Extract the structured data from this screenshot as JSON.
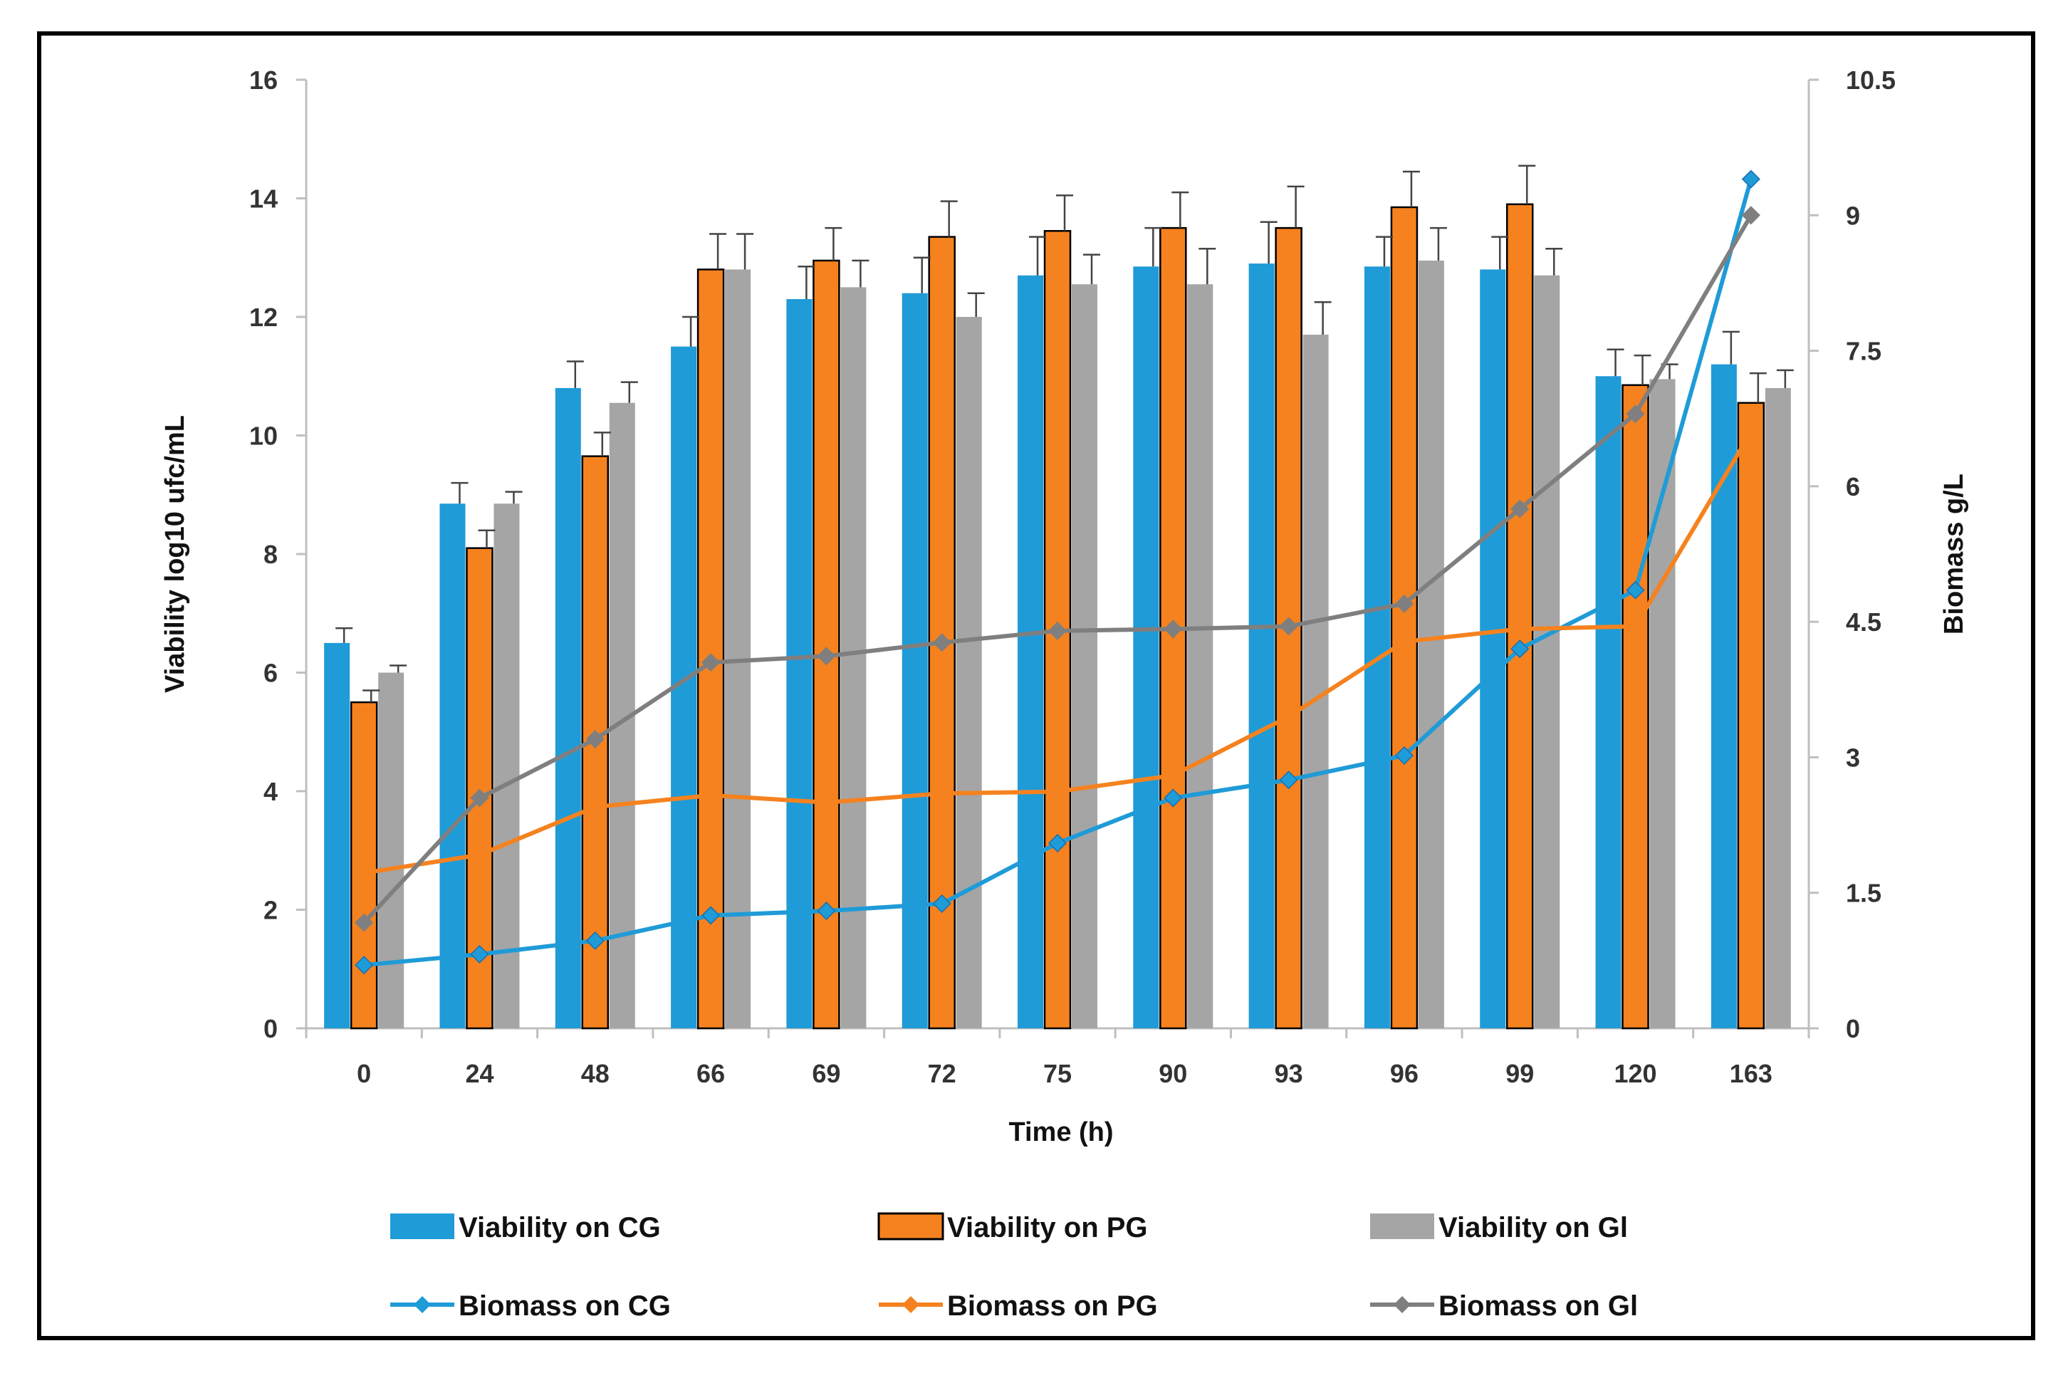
{
  "chart_data": {
    "type": "bar+line",
    "title": "",
    "xlabel": "Time (h)",
    "ylabel_left": "Viability log10 ufc/mL",
    "ylabel_right": "Biomass g/L",
    "ylim_left": [
      0,
      16
    ],
    "ylim_right": [
      0,
      10.5
    ],
    "yticks_left": [
      "0",
      "2",
      "4",
      "6",
      "8",
      "10",
      "12",
      "14",
      "16"
    ],
    "yticks_right": [
      "0",
      "1.5",
      "3",
      "4.5",
      "6",
      "7.5",
      "9",
      "10.5"
    ],
    "categories": [
      "0",
      "24",
      "48",
      "66",
      "69",
      "72",
      "75",
      "90",
      "93",
      "96",
      "99",
      "120",
      "163"
    ],
    "bar_series": [
      {
        "name": "Viability on CG",
        "color": "#1f9bd7",
        "values": [
          6.5,
          8.85,
          10.8,
          11.5,
          12.3,
          12.4,
          12.7,
          12.85,
          12.9,
          12.85,
          12.8,
          11.0,
          11.2
        ],
        "errors": [
          0.25,
          0.35,
          0.45,
          0.5,
          0.55,
          0.6,
          0.65,
          0.65,
          0.7,
          0.5,
          0.55,
          0.45,
          0.55
        ]
      },
      {
        "name": "Viability on PG",
        "color": "#f5821f",
        "values": [
          5.5,
          8.1,
          9.65,
          12.8,
          12.95,
          13.35,
          13.45,
          13.5,
          13.5,
          13.85,
          13.9,
          10.85,
          10.55
        ],
        "errors": [
          0.2,
          0.3,
          0.4,
          0.6,
          0.55,
          0.6,
          0.6,
          0.6,
          0.7,
          0.6,
          0.65,
          0.5,
          0.5
        ]
      },
      {
        "name": "Viability on Gl",
        "color": "#a5a5a5",
        "values": [
          6.0,
          8.85,
          10.55,
          12.8,
          12.5,
          12.0,
          12.55,
          12.55,
          11.7,
          12.95,
          12.7,
          10.95,
          10.8
        ],
        "errors": [
          0.12,
          0.2,
          0.35,
          0.6,
          0.45,
          0.4,
          0.5,
          0.6,
          0.55,
          0.55,
          0.45,
          0.25,
          0.3
        ]
      }
    ],
    "line_series": [
      {
        "name": "Biomass on CG",
        "color": "#1f9bd7",
        "values": [
          0.7,
          0.82,
          0.97,
          1.25,
          1.3,
          1.38,
          2.05,
          2.55,
          2.75,
          3.02,
          4.2,
          4.85,
          9.4
        ]
      },
      {
        "name": "Biomass on PG",
        "color": "#f5821f",
        "values": [
          1.72,
          1.92,
          2.45,
          2.58,
          2.5,
          2.6,
          2.62,
          2.8,
          3.45,
          4.28,
          4.42,
          4.45,
          6.6
        ]
      },
      {
        "name": "Biomass on Gl",
        "color": "#7f7f7f",
        "values": [
          1.17,
          2.55,
          3.2,
          4.05,
          4.12,
          4.27,
          4.4,
          4.42,
          4.45,
          4.7,
          5.75,
          6.8,
          9.0
        ]
      }
    ],
    "legend_position": "bottom"
  }
}
